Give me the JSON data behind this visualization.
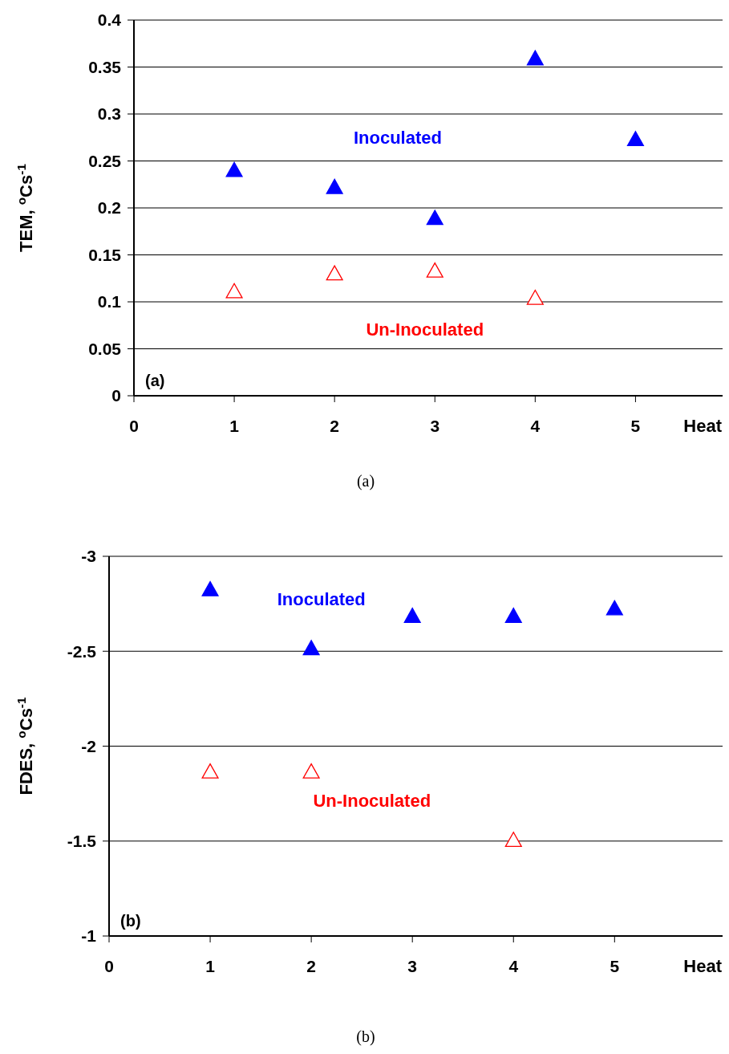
{
  "chart_data": [
    {
      "type": "scatter",
      "x": [
        1,
        2,
        3,
        4,
        5
      ],
      "xlabel": "Heat",
      "ylabel": "TEM, $^{o}$Cs$^{-1}$",
      "xlim": [
        0,
        5.9
      ],
      "xticks": [
        0,
        1,
        2,
        3,
        4,
        5
      ],
      "ylim": [
        0,
        0.4
      ],
      "yticks": [
        0,
        0.05,
        0.1,
        0.15,
        0.2,
        0.25,
        0.3,
        0.35,
        0.4
      ],
      "grid": "y",
      "marker": "triangle",
      "annotations": [
        "(a)",
        "(a)"
      ],
      "series": [
        {
          "name": "Inoculated",
          "color": "#0000ff",
          "values": [
            0.239,
            0.221,
            0.188,
            0.358,
            0.272
          ]
        },
        {
          "name": "Un-Inoculated",
          "color": "#ff0000",
          "values": [
            0.11,
            0.129,
            0.132,
            0.103,
            null
          ]
        }
      ]
    },
    {
      "type": "scatter",
      "x": [
        1,
        2,
        3,
        4,
        5
      ],
      "xlabel": "Heat",
      "ylabel": "FDES, $^{o}$Cs$^{-1}$",
      "xlim": [
        0,
        6.1
      ],
      "xticks": [
        0,
        1,
        2,
        3,
        4,
        5
      ],
      "ylim": [
        -1,
        -3
      ],
      "yticks": [
        -1,
        -1.5,
        -2,
        -2.5,
        -3
      ],
      "grid": "y",
      "marker": "triangle",
      "annotations": [
        "(b)",
        "(b)"
      ],
      "series": [
        {
          "name": "Inoculated",
          "color": "#0000ff",
          "values": [
            -2.82,
            -2.51,
            -2.68,
            -2.68,
            -2.72
          ]
        },
        {
          "name": "Un-Inoculated",
          "color": "#ff0000",
          "values": [
            -1.86,
            -1.86,
            null,
            -1.5,
            null
          ]
        }
      ]
    }
  ]
}
